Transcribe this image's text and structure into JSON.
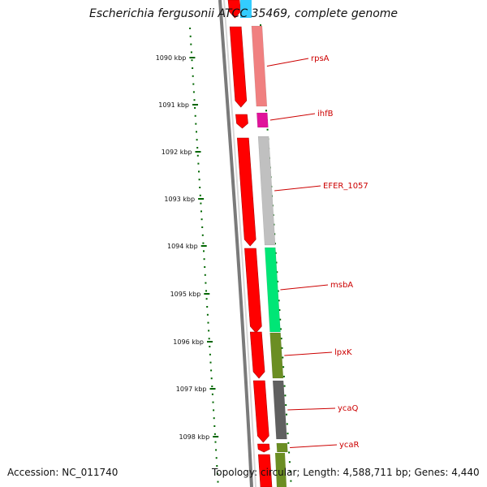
{
  "header": {
    "title": "Escherichia fergusonii ATCC 35469, complete genome"
  },
  "footer": {
    "accession": "Accession: NC_011740",
    "summary": "Topology: circular; Length: 4,588,711 bp; Genes: 4,440"
  },
  "colors": {
    "backbone": "#7a7a7a",
    "cds_forward": "#ff0000",
    "ticks": "#006600",
    "label_text": "#cc0000"
  },
  "tick_labels": [
    "1090 kbp",
    "1091 kbp",
    "1092 kbp",
    "1093 kbp",
    "1094 kbp",
    "1095 kbp",
    "1096 kbp",
    "1097 kbp",
    "1098 kbp"
  ],
  "genes": [
    {
      "name": "rpsA",
      "color": "#f08080"
    },
    {
      "name": "ihfB",
      "color": "#e0149a"
    },
    {
      "name": "EFER_1057",
      "color": "#c0c0c0"
    },
    {
      "name": "msbA",
      "color": "#00e676"
    },
    {
      "name": "lpxK",
      "color": "#6b8e23"
    },
    {
      "name": "ycaQ",
      "color": "#606060"
    },
    {
      "name": "ycaR",
      "color": "#6b8e23"
    }
  ]
}
